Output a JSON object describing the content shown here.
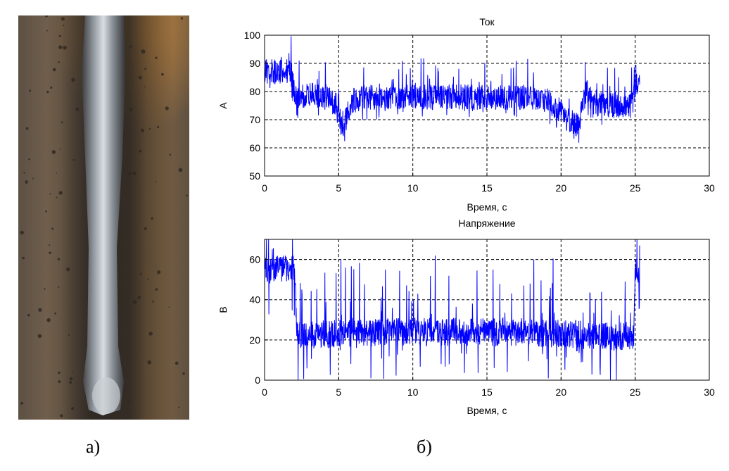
{
  "figure": {
    "panel_a_label": "а)",
    "panel_b_label": "б)"
  },
  "photo": {
    "colors": {
      "plate": "#6b5a45",
      "rust": "#b07a3e",
      "bead": "#8f969e",
      "bead_highlight": "#d5dade",
      "scorch": "#2f2a25"
    }
  },
  "chart_data": [
    {
      "type": "line",
      "title": "Ток",
      "xlabel": "Время, с",
      "ylabel": "А",
      "xlim": [
        0,
        30
      ],
      "ylim": [
        50,
        100
      ],
      "xticks": [
        "0",
        "5",
        "10",
        "15",
        "20",
        "25",
        "30"
      ],
      "yticks": [
        "50",
        "60",
        "70",
        "80",
        "90",
        "100"
      ],
      "grid": true,
      "color": "#0000ff",
      "series": [
        {
          "x": [
            0,
            1,
            1.8,
            2,
            2.1,
            2.5,
            3,
            4,
            4.8,
            5,
            5.3,
            6,
            7,
            8,
            9,
            10,
            11,
            12,
            13,
            14,
            15,
            16,
            17,
            18,
            19,
            19.8,
            20.3,
            20.8,
            21.2,
            21.7,
            22.2,
            23,
            24,
            24.8,
            25,
            25.3
          ],
          "values": [
            87,
            87,
            87,
            80,
            78,
            78,
            79,
            78,
            76,
            70,
            68,
            77,
            78,
            78,
            78,
            78,
            78,
            78,
            78,
            78,
            78,
            78,
            78,
            78,
            77,
            74,
            71,
            69,
            68,
            80,
            76,
            75,
            75,
            75,
            82,
            83
          ]
        }
      ]
    },
    {
      "type": "line",
      "title": "Напряжение",
      "xlabel": "Время, с",
      "ylabel": "В",
      "xlim": [
        0,
        30
      ],
      "ylim": [
        0,
        70
      ],
      "xticks": [
        "0",
        "5",
        "10",
        "15",
        "20",
        "25",
        "30"
      ],
      "yticks": [
        "0",
        "20",
        "40",
        "60"
      ],
      "grid": true,
      "color": "#0000ff",
      "series": [
        {
          "x": [
            0,
            1,
            2,
            2.2,
            3,
            4,
            5,
            6,
            7,
            8,
            9,
            10,
            11,
            12,
            13,
            14,
            15,
            16,
            17,
            18,
            19,
            20,
            21,
            22,
            23,
            24,
            24.9,
            25,
            25.3
          ],
          "values": [
            55,
            55,
            55,
            22,
            22,
            23,
            23,
            23,
            23,
            24,
            24,
            24,
            24,
            24,
            24,
            24,
            24,
            24,
            24,
            24,
            23,
            23,
            23,
            22,
            22,
            22,
            22,
            55,
            55
          ]
        }
      ]
    }
  ]
}
